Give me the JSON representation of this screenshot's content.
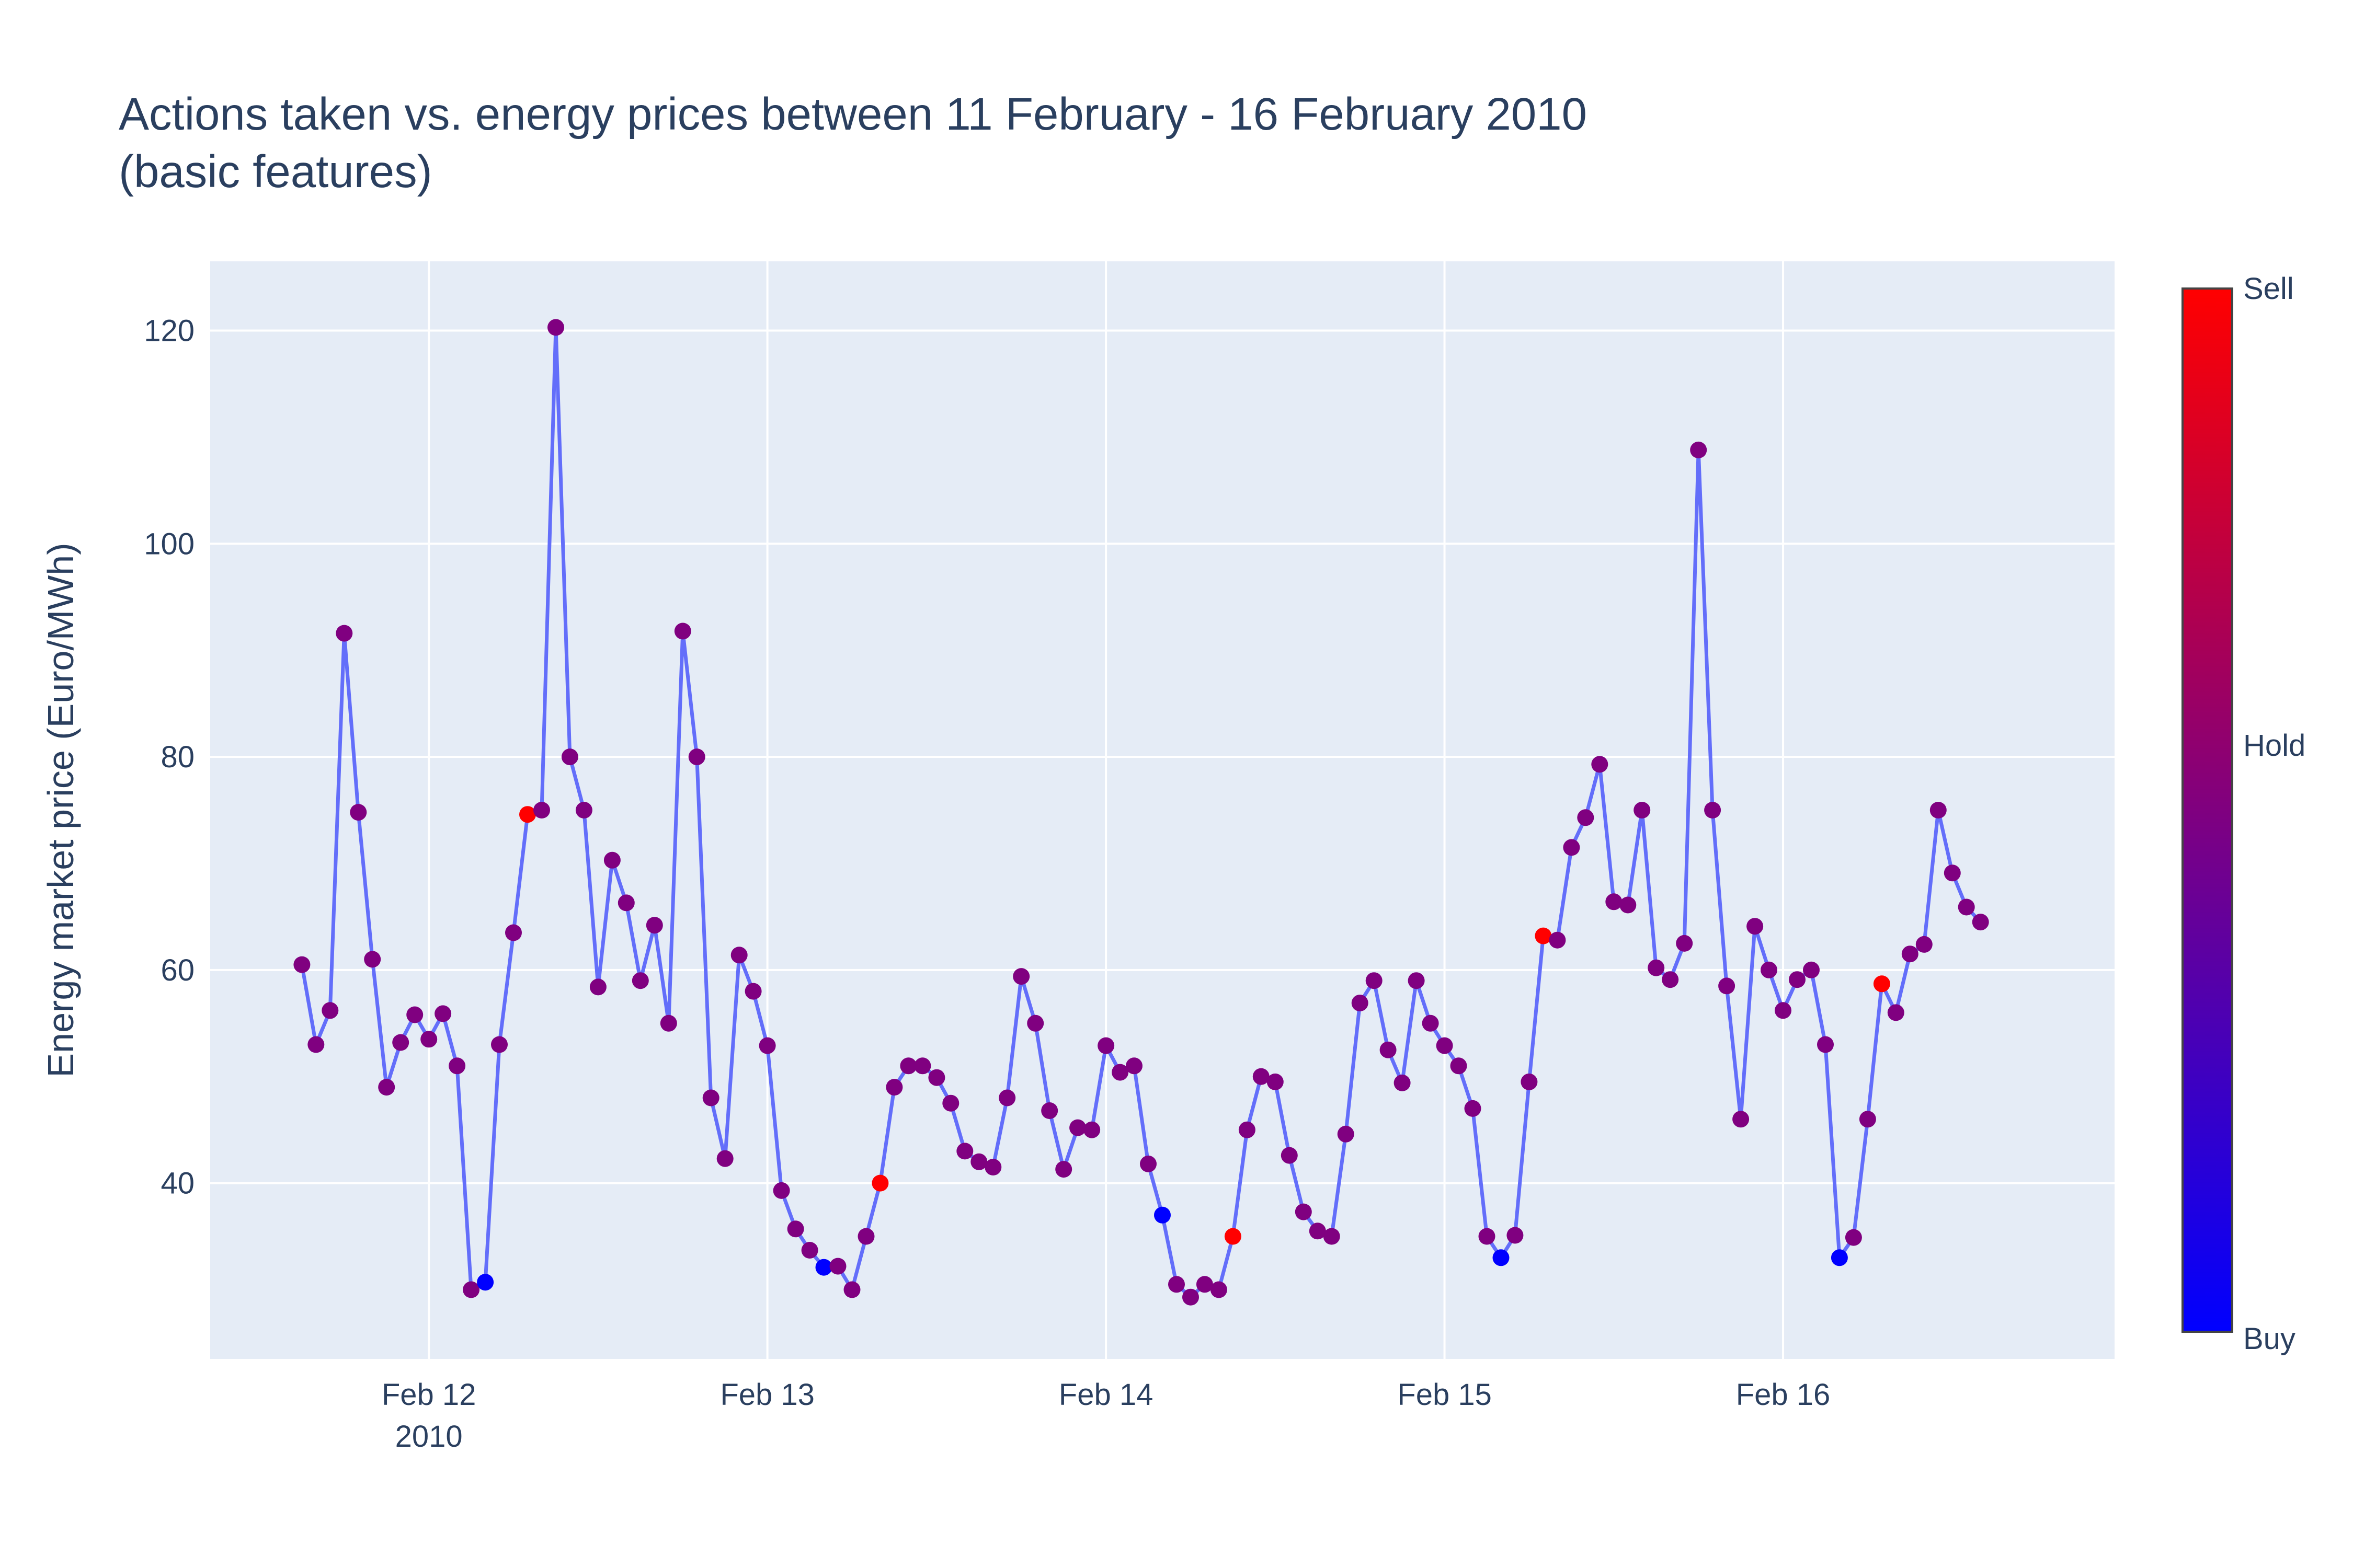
{
  "chart_data": {
    "type": "line",
    "title": "Actions taken vs. energy prices between 11 February - 16 February 2010",
    "subtitle": "(basic features)",
    "xlabel": "",
    "ylabel": "Energy market price (Euro/MWh)",
    "x_start": "2010-02-11T15:00",
    "x_step_hours": 1,
    "xlim": [
      "2010-02-11T08:30",
      "2010-02-16T23:30"
    ],
    "ylim": [
      23.5,
      126.5
    ],
    "x_ticks": [
      {
        "label": "Feb 12",
        "sublabel": "2010",
        "date": "2010-02-12T00:00"
      },
      {
        "label": "Feb 13",
        "sublabel": "",
        "date": "2010-02-13T00:00"
      },
      {
        "label": "Feb 14",
        "sublabel": "",
        "date": "2010-02-14T00:00"
      },
      {
        "label": "Feb 15",
        "sublabel": "",
        "date": "2010-02-15T00:00"
      },
      {
        "label": "Feb 16",
        "sublabel": "",
        "date": "2010-02-16T00:00"
      }
    ],
    "y_ticks": [
      40,
      60,
      80,
      100,
      120
    ],
    "grid": true,
    "series": [
      {
        "name": "",
        "line_color": "#636efa",
        "values": [
          60.5,
          53.0,
          56.2,
          91.6,
          74.8,
          61.0,
          49.0,
          53.2,
          55.8,
          53.5,
          55.9,
          51.0,
          30.0,
          30.7,
          53.0,
          63.5,
          74.6,
          75.0,
          120.3,
          80.0,
          75.0,
          58.4,
          70.3,
          66.3,
          59.0,
          64.2,
          55.0,
          91.8,
          80.0,
          48.0,
          42.3,
          61.4,
          58.0,
          52.9,
          39.3,
          35.7,
          33.7,
          32.1,
          32.2,
          30.0,
          35.0,
          40.0,
          49.0,
          51.0,
          51.0,
          49.9,
          47.5,
          43.0,
          42.0,
          41.5,
          48.0,
          59.4,
          55.0,
          46.8,
          41.3,
          45.2,
          45.0,
          52.9,
          50.4,
          51.0,
          41.8,
          37.0,
          30.5,
          29.3,
          30.5,
          30.0,
          35.0,
          45.0,
          50.0,
          49.5,
          42.6,
          37.3,
          35.5,
          35.0,
          44.6,
          56.9,
          59.0,
          52.5,
          49.4,
          59.0,
          55.0,
          52.9,
          51.0,
          47.0,
          35.0,
          33.0,
          35.1,
          49.5,
          63.2,
          62.8,
          71.5,
          74.3,
          79.3,
          66.4,
          66.1,
          75.0,
          60.2,
          59.1,
          62.5,
          108.8,
          75.0,
          58.5,
          46.0,
          64.1,
          60.0,
          56.2,
          59.1,
          60.0,
          53.0,
          33.0,
          34.9,
          46.0,
          58.7,
          56.0,
          61.5,
          62.4,
          75.0,
          69.1,
          65.9,
          64.5
        ],
        "actions": [
          0,
          0,
          0,
          0,
          0,
          0,
          0,
          0,
          0,
          0,
          0,
          0,
          0,
          -1,
          0,
          0,
          1,
          0,
          0,
          0,
          0,
          0,
          0,
          0,
          0,
          0,
          0,
          0,
          0,
          0,
          0,
          0,
          0,
          0,
          0,
          0,
          0,
          -1,
          0,
          0,
          0,
          1,
          0,
          0,
          0,
          0,
          0,
          0,
          0,
          0,
          0,
          0,
          0,
          0,
          0,
          0,
          0,
          0,
          0,
          0,
          0,
          -1,
          0,
          0,
          0,
          0,
          1,
          0,
          0,
          0,
          0,
          0,
          0,
          0,
          0,
          0,
          0,
          0,
          0,
          0,
          0,
          0,
          0,
          0,
          0,
          -1,
          0,
          0,
          1,
          0,
          0,
          0,
          0,
          0,
          0,
          0,
          0,
          0,
          0,
          0,
          0,
          0,
          0,
          0,
          0,
          0,
          0,
          0,
          0,
          -1,
          0,
          0,
          1,
          0,
          0,
          0,
          0,
          0,
          0,
          0
        ]
      }
    ],
    "colorscale": {
      "low_color": "#0000ff",
      "high_color": "#ff0000",
      "labels": {
        "low": "Buy",
        "mid": "Hold",
        "high": "Sell"
      }
    }
  }
}
